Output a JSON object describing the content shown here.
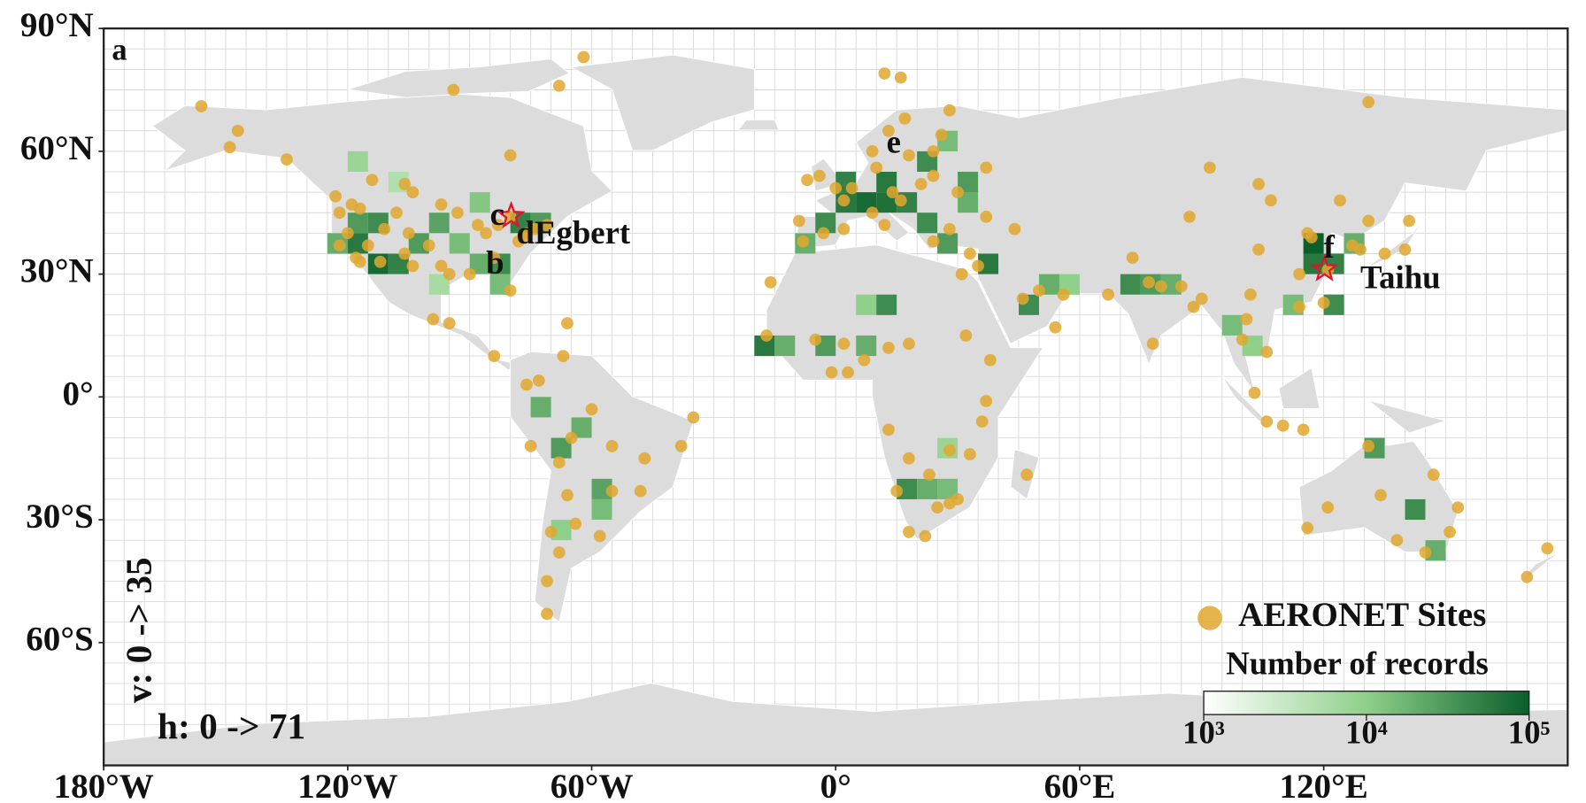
{
  "chart_data": {
    "type": "map",
    "xlim": [
      -180,
      180
    ],
    "ylim": [
      -90,
      90
    ],
    "xticks": [
      {
        "value": -180,
        "label": "180°W"
      },
      {
        "value": -120,
        "label": "120°W"
      },
      {
        "value": -60,
        "label": "60°W"
      },
      {
        "value": 0,
        "label": "0°"
      },
      {
        "value": 60,
        "label": "60°E"
      },
      {
        "value": 120,
        "label": "120°E"
      }
    ],
    "yticks": [
      {
        "value": 90,
        "label": "90°N"
      },
      {
        "value": 60,
        "label": "60°N"
      },
      {
        "value": 30,
        "label": "30°N"
      },
      {
        "value": 0,
        "label": "0°"
      },
      {
        "value": -30,
        "label": "30°S"
      },
      {
        "value": -60,
        "label": "60°S"
      }
    ],
    "grid": true,
    "grid_step": 5,
    "cells": {
      "label": "Number of records",
      "colormap": [
        "#ffffff",
        "#8fd08a",
        "#0a5f2a"
      ],
      "log": true,
      "clim": [
        1000,
        100000
      ],
      "cticks": [
        {
          "value": 1000,
          "label": "10³"
        },
        {
          "value": 10000,
          "label": "10⁴"
        },
        {
          "value": 100000,
          "label": "10⁵"
        }
      ],
      "lon": [
        -125,
        -120,
        -115,
        -110,
        -120,
        -115,
        -105,
        -100,
        -95,
        -90,
        -85,
        -80,
        -75,
        -90,
        -110,
        -120,
        -85,
        -100,
        -10,
        -5,
        0,
        5,
        10,
        15,
        20,
        25,
        30,
        0,
        10,
        20,
        25,
        30,
        35,
        45,
        50,
        55,
        -20,
        -15,
        -5,
        5,
        5,
        10,
        15,
        20,
        25,
        25,
        70,
        75,
        80,
        95,
        100,
        115,
        115,
        120,
        120,
        125,
        110,
        130,
        140,
        145,
        -75,
        -70,
        -65,
        -60,
        -70,
        -60
      ],
      "lat": [
        35,
        35,
        30,
        30,
        40,
        40,
        35,
        40,
        35,
        30,
        30,
        40,
        40,
        45,
        50,
        55,
        25,
        25,
        35,
        40,
        45,
        45,
        45,
        45,
        40,
        35,
        45,
        50,
        50,
        55,
        60,
        50,
        30,
        20,
        25,
        25,
        10,
        10,
        10,
        10,
        20,
        20,
        -25,
        -25,
        -25,
        -15,
        25,
        25,
        25,
        15,
        10,
        35,
        30,
        30,
        20,
        35,
        20,
        -15,
        -30,
        -40,
        -5,
        -15,
        -10,
        -30,
        -35,
        -25
      ],
      "values": [
        20000,
        60000,
        80000,
        50000,
        30000,
        40000,
        30000,
        25000,
        15000,
        20000,
        40000,
        50000,
        30000,
        12000,
        5000,
        8000,
        15000,
        6000,
        20000,
        40000,
        60000,
        80000,
        70000,
        50000,
        40000,
        30000,
        20000,
        50000,
        60000,
        40000,
        15000,
        30000,
        60000,
        40000,
        20000,
        10000,
        60000,
        20000,
        30000,
        20000,
        10000,
        40000,
        40000,
        20000,
        15000,
        8000,
        40000,
        30000,
        20000,
        15000,
        10000,
        100000,
        60000,
        50000,
        40000,
        20000,
        15000,
        30000,
        40000,
        20000,
        20000,
        30000,
        20000,
        15000,
        10000,
        25000
      ]
    },
    "series": [
      {
        "name": "AERONET Sites",
        "color": "#e2a72e",
        "lon": [
          -122,
          -118,
          -117,
          -112,
          -106,
          -105,
          -111,
          -122,
          -119,
          -104,
          -97,
          -95,
          -90,
          -84,
          -80,
          -77,
          -76,
          -74,
          -71,
          -88,
          -83,
          -93,
          -97,
          -104,
          -114,
          -106,
          -123,
          -135,
          -147,
          -156,
          -149,
          -95,
          -99,
          -84,
          -66,
          -80,
          -78,
          -86,
          -100,
          -115,
          -120,
          -108,
          -117,
          -62,
          -94,
          -68,
          -80,
          -75,
          -68,
          -65,
          -60,
          -47,
          -55,
          -58,
          -64,
          -70,
          -66,
          -68,
          -71,
          -71,
          -55,
          -48,
          -38,
          -35,
          -73,
          -76,
          -67,
          -3,
          2,
          -8,
          -9,
          2,
          4,
          9,
          12,
          14,
          16,
          21,
          24,
          24,
          26,
          18,
          10,
          0,
          -4,
          -7,
          9,
          17,
          28,
          24,
          28,
          33,
          35,
          37,
          44,
          30,
          37,
          13,
          16,
          12,
          -17,
          -16,
          -5,
          2,
          7,
          3,
          -1,
          13,
          18,
          32,
          31,
          38,
          37,
          36,
          28,
          33,
          15,
          23,
          28,
          18,
          25,
          22,
          30,
          18,
          13,
          47,
          46,
          50,
          56,
          54,
          67,
          73,
          77,
          80,
          85,
          78,
          88,
          90,
          100,
          101,
          106,
          103,
          106,
          110,
          115,
          116,
          117,
          114,
          121,
          120,
          114,
          127,
          129,
          135,
          140,
          141,
          87,
          104,
          107,
          102,
          92,
          104,
          124,
          131,
          116,
          131,
          134,
          138,
          145,
          151,
          153,
          147,
          121,
          170,
          175,
          131
        ],
        "lat": [
          37,
          34,
          33,
          33,
          35,
          40,
          41,
          45,
          47,
          32,
          32,
          30,
          30,
          34,
          26,
          39,
          40,
          41,
          42,
          42,
          42,
          45,
          47,
          50,
          53,
          52,
          49,
          58,
          65,
          71,
          61,
          18,
          19,
          10,
          18,
          44,
          38,
          40,
          37,
          37,
          40,
          45,
          46,
          83,
          75,
          76,
          59,
          -12,
          -16,
          -10,
          -3,
          -15,
          -12,
          -34,
          -31,
          -33,
          -24,
          -38,
          -45,
          -53,
          -23,
          -23,
          -12,
          -5,
          4,
          3,
          10,
          40,
          41,
          38,
          43,
          48,
          51,
          45,
          42,
          50,
          48,
          52,
          54,
          60,
          64,
          59,
          56,
          51,
          54,
          53,
          60,
          68,
          70,
          38,
          41,
          35,
          32,
          44,
          41,
          50,
          56,
          65,
          78,
          79,
          15,
          28,
          14,
          13,
          9,
          6,
          6,
          12,
          13,
          15,
          30,
          9,
          -1,
          -6,
          -13,
          -14,
          -23,
          -19,
          -26,
          -33,
          -27,
          -34,
          -25,
          -15,
          -8,
          -19,
          24,
          26,
          25,
          17,
          25,
          34,
          28,
          27,
          27,
          13,
          22,
          24,
          14,
          19,
          11,
          1,
          -6,
          -7,
          -8,
          40,
          39,
          30,
          31,
          23,
          22,
          37,
          36,
          35,
          36,
          43,
          44,
          36,
          48,
          25,
          56,
          52,
          48,
          43,
          -32,
          -12,
          -24,
          -35,
          -38,
          -33,
          -27,
          -19,
          -27,
          -44,
          -37,
          72
        ]
      }
    ],
    "stars": {
      "color": "#e0142f",
      "lon": [
        -79.8,
        120.2
      ],
      "lat": [
        44.2,
        31.2
      ]
    },
    "annotations": [
      "a",
      "c",
      "dEgbert",
      "b",
      "e",
      "f",
      "Taihu",
      "v: 0 -> 35",
      "h: 0 -> 71"
    ]
  }
}
